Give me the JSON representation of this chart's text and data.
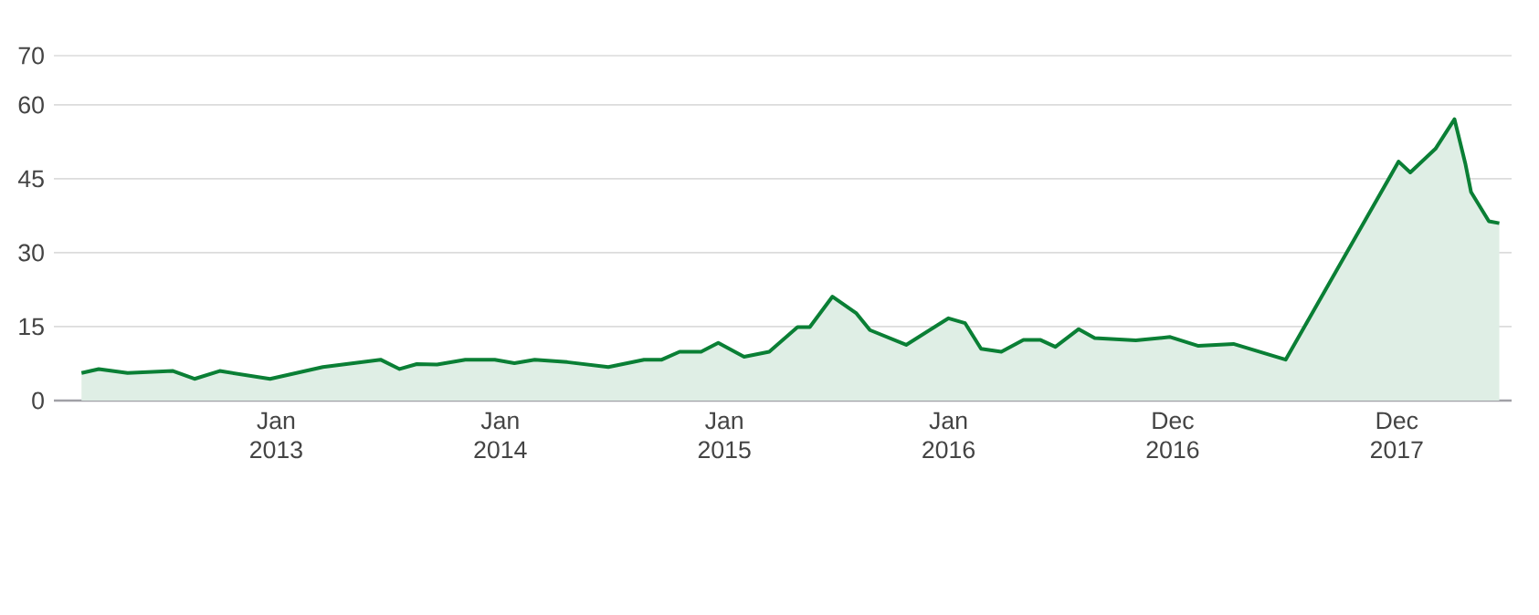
{
  "chart_data": {
    "type": "area",
    "x": [
      "2012-02-19",
      "2012-03-18",
      "2012-05-04",
      "2012-07-17",
      "2012-08-21",
      "2012-10-01",
      "2012-12-22",
      "2013-03-18",
      "2013-06-20",
      "2013-07-21",
      "2013-08-18",
      "2013-09-20",
      "2013-11-05",
      "2013-12-23",
      "2014-01-24",
      "2014-02-26",
      "2014-04-20",
      "2014-06-26",
      "2014-08-23",
      "2014-09-21",
      "2014-10-20",
      "2014-11-24",
      "2014-12-22",
      "2015-02-02",
      "2015-03-15",
      "2015-04-30",
      "2015-05-20",
      "2015-06-26",
      "2015-08-04",
      "2015-08-26",
      "2015-10-24",
      "2016-01-01",
      "2016-01-28",
      "2016-02-23",
      "2016-03-27",
      "2016-05-02",
      "2016-05-30",
      "2016-06-23",
      "2016-07-31",
      "2016-08-26",
      "2016-11-01",
      "2016-12-27",
      "2017-02-11",
      "2017-04-09",
      "2017-07-03",
      "2018-01-03",
      "2018-01-22",
      "2018-03-04",
      "2018-04-04",
      "2018-04-22",
      "2018-05-01",
      "2018-05-30",
      "2018-06-16"
    ],
    "series": [
      {
        "color": "#0a7f35",
        "values": [
          5.6,
          6.4,
          5.6,
          6.0,
          4.4,
          6.0,
          4.4,
          6.8,
          8.3,
          6.4,
          7.4,
          7.3,
          8.3,
          8.3,
          7.6,
          8.3,
          7.8,
          6.8,
          8.3,
          8.3,
          9.9,
          9.9,
          11.7,
          8.9,
          9.9,
          14.9,
          14.9,
          21.1,
          17.7,
          14.3,
          11.3,
          16.7,
          15.7,
          10.5,
          9.9,
          12.3,
          12.3,
          10.9,
          14.5,
          12.7,
          12.2,
          12.9,
          11.1,
          11.5,
          8.3,
          48.5,
          46.3,
          51.1,
          57.1,
          47.9,
          42.3,
          36.4,
          36.0
        ]
      }
    ],
    "xlim": [
      "2012-01-05",
      "2018-07-06"
    ],
    "xticks": [
      {
        "value": "2013-01-01",
        "label": "Jan 2013"
      },
      {
        "value": "2014-01-01",
        "label": "Jan 2014"
      },
      {
        "value": "2015-01-01",
        "label": "Jan 2015"
      },
      {
        "value": "2016-01-01",
        "label": "Jan 2016"
      },
      {
        "value": "2016-12-31",
        "label": "Dec 2016"
      },
      {
        "value": "2017-12-31",
        "label": "Dec 2017"
      }
    ],
    "ylim": [
      0,
      70
    ],
    "yticks": [
      0,
      15,
      30,
      45,
      60,
      70
    ],
    "grid": "y"
  }
}
